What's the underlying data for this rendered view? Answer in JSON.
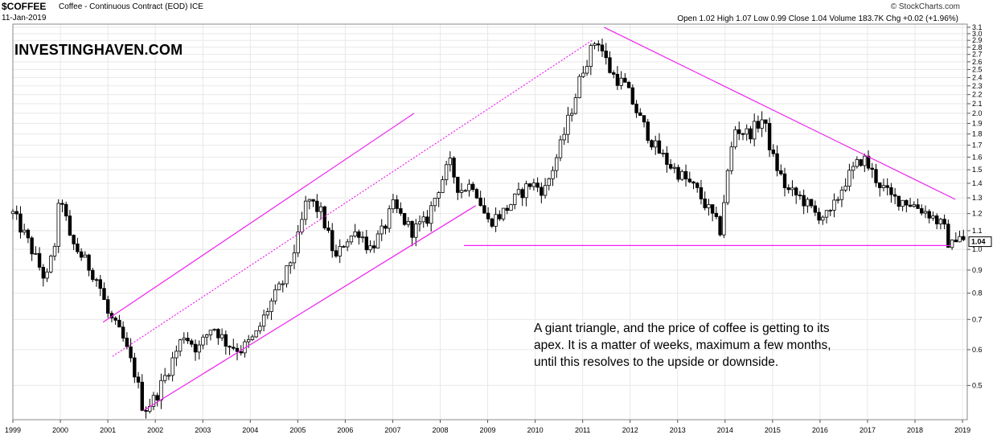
{
  "header": {
    "symbol": "$COFFEE",
    "description": "Coffee - Continuous Contract (EOD) ICE",
    "date": "11-Jan-2019",
    "ohlc": "Open 1.02  High 1.07  Low 0.99  Close 1.04  Volume 183.7K  Chg +0.02 (+1.96%)",
    "credit": "© StockCharts.com"
  },
  "watermark": "INVESTINGHAVEN.COM",
  "annotation": [
    "A giant triangle, and the price of coffee is getting to its",
    "apex. It is a matter of weeks, maximum a few months,",
    "until this resolves to the upside or downside."
  ],
  "colors": {
    "up": "#ffffff",
    "down": "#000000",
    "trendline": "#ee22ee",
    "grid": "#e8e8e8"
  },
  "chart_data": {
    "type": "bar",
    "style": "candlestick",
    "scale": "log",
    "ylim": [
      0.42,
      3.15
    ],
    "xlim": [
      1999.0,
      2019.1
    ],
    "y_ticks": [
      "0.5",
      "0.6",
      "0.7",
      "0.8",
      "0.9",
      "1.0",
      "1.1",
      "1.2",
      "1.3",
      "1.4",
      "1.5",
      "1.6",
      "1.7",
      "1.8",
      "1.9",
      "2.0",
      "2.1",
      "2.2",
      "2.3",
      "2.4",
      "2.5",
      "2.6",
      "2.7",
      "2.8",
      "2.9",
      "3.0",
      "3.1"
    ],
    "x_ticks": [
      "1999",
      "2000",
      "2001",
      "2002",
      "2003",
      "2004",
      "2005",
      "2006",
      "2007",
      "2008",
      "2009",
      "2010",
      "2011",
      "2012",
      "2013",
      "2014",
      "2015",
      "2016",
      "2017",
      "2018",
      "2019"
    ],
    "last_value": "1.04",
    "price_path": [
      [
        1999.0,
        1.2
      ],
      [
        1999.3,
        1.05
      ],
      [
        1999.7,
        0.85
      ],
      [
        1999.9,
        1.05
      ],
      [
        2000.0,
        1.35
      ],
      [
        2000.2,
        1.05
      ],
      [
        2000.5,
        0.95
      ],
      [
        2000.8,
        0.85
      ],
      [
        2001.0,
        0.72
      ],
      [
        2001.3,
        0.64
      ],
      [
        2001.6,
        0.52
      ],
      [
        2001.75,
        0.44
      ],
      [
        2002.0,
        0.47
      ],
      [
        2002.3,
        0.55
      ],
      [
        2002.6,
        0.65
      ],
      [
        2002.9,
        0.6
      ],
      [
        2003.2,
        0.68
      ],
      [
        2003.5,
        0.62
      ],
      [
        2003.8,
        0.6
      ],
      [
        2004.1,
        0.64
      ],
      [
        2004.4,
        0.75
      ],
      [
        2004.7,
        0.85
      ],
      [
        2005.0,
        1.05
      ],
      [
        2005.2,
        1.3
      ],
      [
        2005.5,
        1.2
      ],
      [
        2005.8,
        0.95
      ],
      [
        2006.0,
        1.05
      ],
      [
        2006.3,
        1.1
      ],
      [
        2006.5,
        1.0
      ],
      [
        2006.8,
        1.1
      ],
      [
        2007.0,
        1.25
      ],
      [
        2007.4,
        1.1
      ],
      [
        2007.7,
        1.15
      ],
      [
        2008.0,
        1.4
      ],
      [
        2008.2,
        1.55
      ],
      [
        2008.4,
        1.35
      ],
      [
        2008.7,
        1.4
      ],
      [
        2009.0,
        1.15
      ],
      [
        2009.3,
        1.2
      ],
      [
        2009.6,
        1.3
      ],
      [
        2009.9,
        1.4
      ],
      [
        2010.2,
        1.35
      ],
      [
        2010.5,
        1.65
      ],
      [
        2010.8,
        2.1
      ],
      [
        2011.0,
        2.5
      ],
      [
        2011.3,
        2.95
      ],
      [
        2011.6,
        2.45
      ],
      [
        2011.9,
        2.3
      ],
      [
        2012.2,
        1.95
      ],
      [
        2012.5,
        1.7
      ],
      [
        2012.8,
        1.55
      ],
      [
        2013.1,
        1.45
      ],
      [
        2013.4,
        1.35
      ],
      [
        2013.7,
        1.2
      ],
      [
        2013.9,
        1.1
      ],
      [
        2014.0,
        1.35
      ],
      [
        2014.2,
        1.85
      ],
      [
        2014.5,
        1.8
      ],
      [
        2014.8,
        1.95
      ],
      [
        2015.0,
        1.6
      ],
      [
        2015.3,
        1.35
      ],
      [
        2015.6,
        1.3
      ],
      [
        2015.9,
        1.2
      ],
      [
        2016.2,
        1.18
      ],
      [
        2016.5,
        1.4
      ],
      [
        2016.8,
        1.55
      ],
      [
        2016.9,
        1.6
      ],
      [
        2017.2,
        1.42
      ],
      [
        2017.5,
        1.3
      ],
      [
        2017.8,
        1.28
      ],
      [
        2018.0,
        1.25
      ],
      [
        2018.3,
        1.2
      ],
      [
        2018.6,
        1.12
      ],
      [
        2018.75,
        1.0
      ],
      [
        2018.9,
        1.1
      ],
      [
        2019.03,
        1.04
      ]
    ]
  }
}
